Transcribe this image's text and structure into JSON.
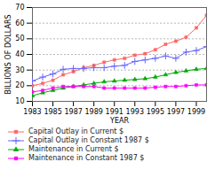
{
  "chart_data": {
    "type": "line",
    "xlabel": "YEAR",
    "ylabel": "BILLIONS OF DOLLARS",
    "x": [
      1983,
      1984,
      1985,
      1986,
      1987,
      1988,
      1989,
      1990,
      1991,
      1992,
      1993,
      1994,
      1995,
      1996,
      1997,
      1998,
      1999,
      2000
    ],
    "series": [
      {
        "name": "Capital Outlay in Current $",
        "color": "#FF6666",
        "marker": "square",
        "values": [
          20.0,
          21.5,
          23.5,
          27.0,
          29.0,
          31.5,
          33.0,
          35.0,
          36.5,
          37.5,
          39.5,
          40.5,
          43.0,
          46.5,
          48.5,
          51.0,
          57.0,
          65.0
        ]
      },
      {
        "name": "Capital Outlay in Constant 1987 $",
        "color": "#6666FF",
        "marker": "plus",
        "values": [
          23.0,
          25.5,
          27.5,
          30.5,
          31.0,
          31.0,
          31.5,
          31.5,
          32.5,
          33.0,
          35.5,
          36.5,
          37.5,
          39.0,
          37.5,
          41.5,
          42.5,
          45.0
        ]
      },
      {
        "name": "Maintenance in Current $",
        "color": "#00AA00",
        "marker": "triangle",
        "values": [
          13.5,
          15.5,
          17.0,
          18.5,
          19.5,
          20.5,
          21.5,
          22.5,
          23.0,
          23.5,
          24.0,
          24.5,
          25.5,
          27.0,
          28.5,
          29.5,
          30.5,
          31.0
        ]
      },
      {
        "name": "Maintenance in Constant 1987 $",
        "color": "#FF00FF",
        "marker": "square",
        "values": [
          16.0,
          17.0,
          18.5,
          19.5,
          19.5,
          19.5,
          19.5,
          18.5,
          18.5,
          18.5,
          18.5,
          18.5,
          19.0,
          19.5,
          19.5,
          20.0,
          20.5,
          20.5
        ]
      }
    ],
    "xlim": [
      1983,
      2000
    ],
    "xticks": [
      1983,
      1985,
      1987,
      1989,
      1991,
      1993,
      1995,
      1997,
      1999
    ],
    "ylim": [
      10,
      70
    ],
    "yticks": [
      10,
      20,
      30,
      40,
      50,
      60,
      70
    ],
    "grid": true
  }
}
